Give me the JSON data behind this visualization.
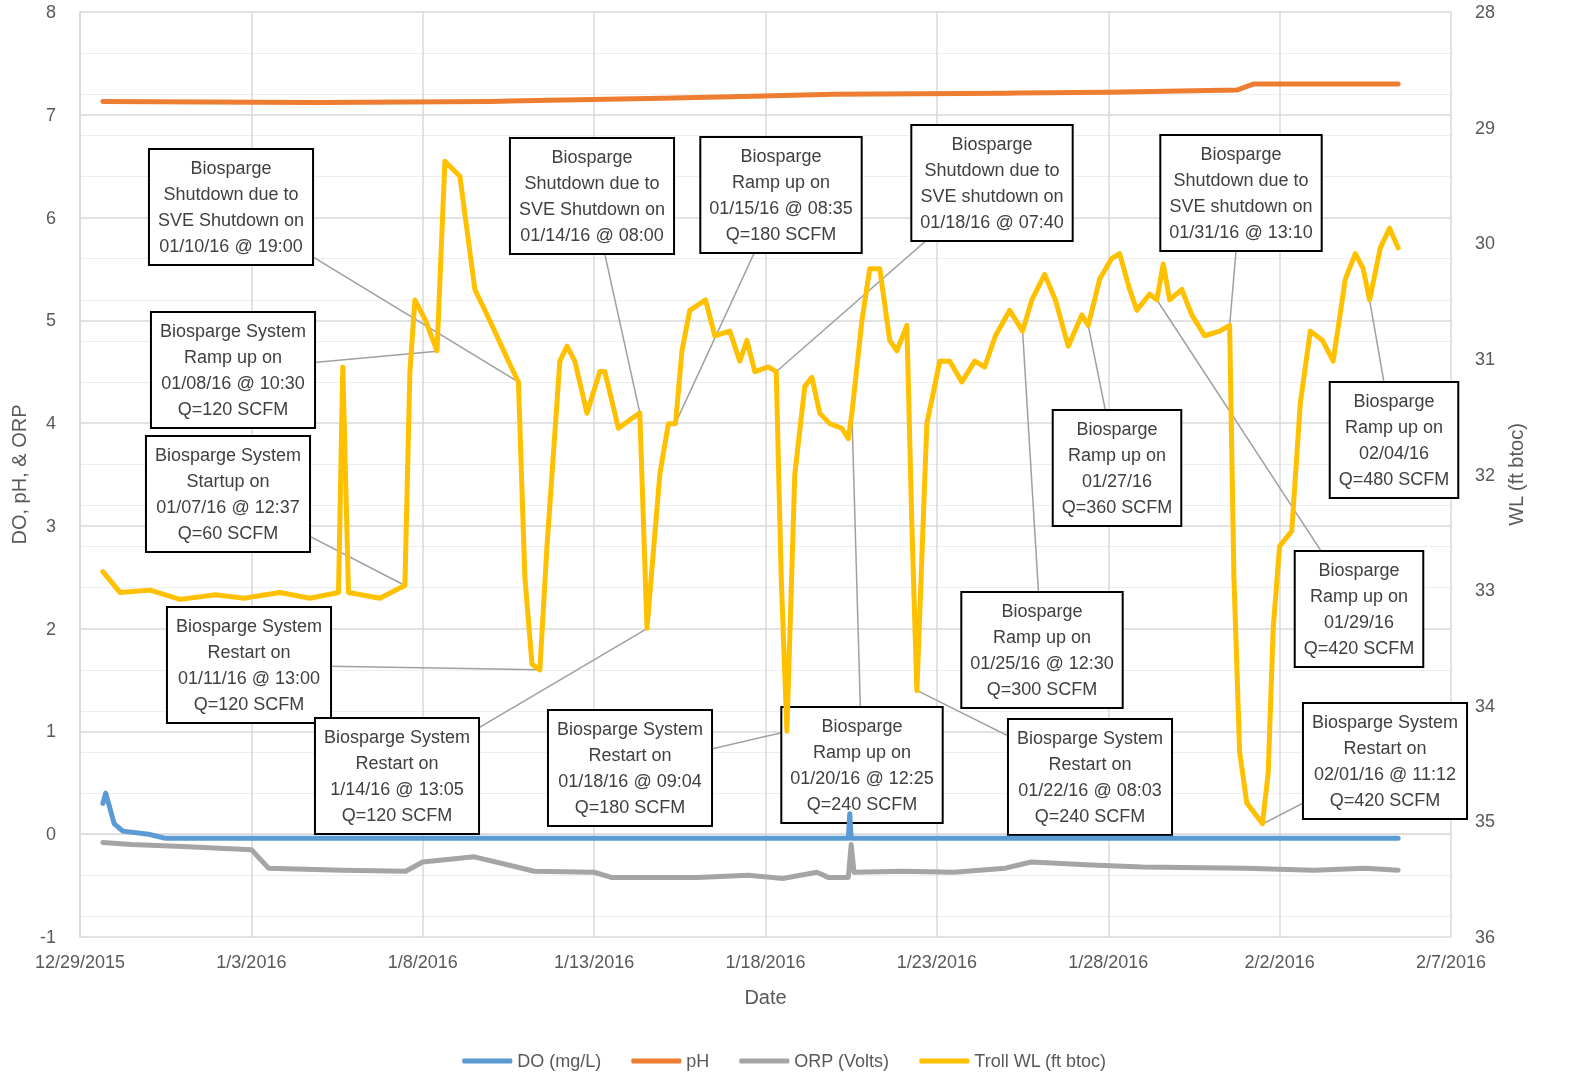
{
  "chart_data": {
    "type": "line",
    "xlabel": "Date",
    "ylabel": "DO, pH, & ORP",
    "y2label": "WL (ft btoc)",
    "xlim": [
      "2015-12-29",
      "2016-02-07"
    ],
    "xticks": [
      {
        "value": "2015-12-29",
        "label": "12/29/2015"
      },
      {
        "value": "2016-01-03",
        "label": "1/3/2016"
      },
      {
        "value": "2016-01-08",
        "label": "1/8/2016"
      },
      {
        "value": "2016-01-13",
        "label": "1/13/2016"
      },
      {
        "value": "2016-01-18",
        "label": "1/18/2016"
      },
      {
        "value": "2016-01-23",
        "label": "1/23/2016"
      },
      {
        "value": "2016-01-28",
        "label": "1/28/2016"
      },
      {
        "value": "2016-02-02",
        "label": "2/2/2016"
      },
      {
        "value": "2016-02-07",
        "label": "2/7/2016"
      }
    ],
    "ylim": [
      -1,
      8
    ],
    "yticks": [
      -1,
      0,
      1,
      2,
      3,
      4,
      5,
      6,
      7,
      8
    ],
    "y2lim": [
      36,
      28
    ],
    "y2ticks": [
      28,
      29,
      30,
      31,
      32,
      33,
      34,
      35,
      36
    ],
    "grid": true,
    "legend": "bottom",
    "marker": "none",
    "series": [
      {
        "name": "DO (mg/L)",
        "color": "#5b9bd5",
        "x": [
          "2015-12-29T16:00",
          "2015-12-29T18:00",
          "2015-12-30T00:00",
          "2015-12-30T06:00",
          "2015-12-31T00:00",
          "2015-12-31T12:00",
          "2016-01-20T10:00",
          "2016-01-20T11:00",
          "2016-01-20T12:00",
          "2016-02-05T11:00"
        ],
        "values": [
          0.3,
          0.4,
          0.1,
          0.03,
          0.0,
          -0.04,
          -0.04,
          0.2,
          -0.04,
          -0.04
        ]
      },
      {
        "name": "pH",
        "color": "#ed7d31",
        "x": [
          "2015-12-29T16:00",
          "2016-01-05T00:00",
          "2016-01-10T00:00",
          "2016-01-15T00:00",
          "2016-01-20T00:00",
          "2016-01-25T00:00",
          "2016-01-28T00:00",
          "2016-01-31T18:00",
          "2016-02-01T06:00",
          "2016-02-05T11:00"
        ],
        "values": [
          7.13,
          7.12,
          7.13,
          7.16,
          7.2,
          7.21,
          7.22,
          7.24,
          7.3,
          7.3
        ]
      },
      {
        "name": "ORP (Volts)",
        "color": "#a5a5a5",
        "x": [
          "2015-12-29T16:00",
          "2015-12-30T12:00",
          "2016-01-01T00:00",
          "2016-01-03T00:00",
          "2016-01-03T12:00",
          "2016-01-05T16:00",
          "2016-01-07T12:00",
          "2016-01-08T00:00",
          "2016-01-09T12:00",
          "2016-01-10T12:00",
          "2016-01-11T06:00",
          "2016-01-13T00:00",
          "2016-01-13T12:00",
          "2016-01-16T00:00",
          "2016-01-17T12:00",
          "2016-01-18T12:00",
          "2016-01-19T12:00",
          "2016-01-19T20:00",
          "2016-01-20T10:00",
          "2016-01-20T12:00",
          "2016-01-20T14:00",
          "2016-01-22T00:00",
          "2016-01-23T12:00",
          "2016-01-25T00:00",
          "2016-01-25T18:00",
          "2016-01-27T12:00",
          "2016-01-29T00:00",
          "2016-02-01T00:00",
          "2016-02-03T00:00",
          "2016-02-04T12:00",
          "2016-02-05T11:00"
        ],
        "values": [
          -0.08,
          -0.1,
          -0.12,
          -0.15,
          -0.33,
          -0.35,
          -0.36,
          -0.27,
          -0.22,
          -0.3,
          -0.36,
          -0.37,
          -0.42,
          -0.42,
          -0.4,
          -0.43,
          -0.37,
          -0.42,
          -0.42,
          -0.1,
          -0.37,
          -0.36,
          -0.37,
          -0.33,
          -0.27,
          -0.3,
          -0.32,
          -0.33,
          -0.35,
          -0.33,
          -0.35
        ]
      },
      {
        "name": "Troll WL (ft btoc)",
        "color": "#ffc000",
        "axis": "y2",
        "x": [
          "2015-12-29T16:00",
          "2015-12-30T04:00",
          "2015-12-31T01:00",
          "2015-12-31T22:00",
          "2016-01-01T23:00",
          "2016-01-02T19:00",
          "2016-01-03T20:00",
          "2016-01-04T17:00",
          "2016-01-05T13:00",
          "2016-01-05T16:00",
          "2016-01-05T20:00",
          "2016-01-06T18:00",
          "2016-01-07T11:30",
          "2016-01-07T15:00",
          "2016-01-07T18:30",
          "2016-01-08T02:00",
          "2016-01-08T10:00",
          "2016-01-08T15:30",
          "2016-01-09T02:00",
          "2016-01-09T12:30",
          "2016-01-09T23:00",
          "2016-01-10T12:00",
          "2016-01-10T19:00",
          "2016-01-10T23:30",
          "2016-01-11T04:30",
          "2016-01-11T10:00",
          "2016-01-11T15:00",
          "2016-01-12T00:00",
          "2016-01-12T05:00",
          "2016-01-12T10:30",
          "2016-01-12T19:00",
          "2016-01-13T04:00",
          "2016-01-13T07:30",
          "2016-01-13T17:00",
          "2016-01-14T03:00",
          "2016-01-14T08:00",
          "2016-01-14T13:00",
          "2016-01-14T22:00",
          "2016-01-15T04:00",
          "2016-01-15T09:00",
          "2016-01-15T13:30",
          "2016-01-15T19:00",
          "2016-01-16T06:00",
          "2016-01-16T12:30",
          "2016-01-16T23:00",
          "2016-01-17T06:00",
          "2016-01-17T11:00",
          "2016-01-17T16:30",
          "2016-01-18T02:00",
          "2016-01-18T07:30",
          "2016-01-18T11:00",
          "2016-01-18T15:00",
          "2016-01-18T20:30",
          "2016-01-19T03:30",
          "2016-01-19T08:30",
          "2016-01-19T14:00",
          "2016-01-19T21:00",
          "2016-01-20T05:30",
          "2016-01-20T10:00",
          "2016-01-20T12:30",
          "2016-01-20T19:30",
          "2016-01-21T01:00",
          "2016-01-21T08:00",
          "2016-01-21T15:00",
          "2016-01-21T20:00",
          "2016-01-22T03:00",
          "2016-01-22T06:30",
          "2016-01-22T10:00",
          "2016-01-22T17:00",
          "2016-01-23T02:00",
          "2016-01-23T09:00",
          "2016-01-23T17:30",
          "2016-01-24T02:30",
          "2016-01-24T09:30",
          "2016-01-24T17:00",
          "2016-01-25T03:00",
          "2016-01-25T12:00",
          "2016-01-25T18:30",
          "2016-01-26T03:30",
          "2016-01-26T11:00",
          "2016-01-26T20:00",
          "2016-01-27T05:30",
          "2016-01-27T10:00",
          "2016-01-27T18:00",
          "2016-01-28T02:30",
          "2016-01-28T08:00",
          "2016-01-28T15:00",
          "2016-01-28T20:00",
          "2016-01-29T05:00",
          "2016-01-29T10:00",
          "2016-01-29T14:30",
          "2016-01-29T19:00",
          "2016-01-30T03:30",
          "2016-01-30T10:30",
          "2016-01-30T19:30",
          "2016-01-31T06:00",
          "2016-01-31T13:00",
          "2016-01-31T16:00",
          "2016-01-31T20:00",
          "2016-02-01T01:00",
          "2016-02-01T12:00",
          "2016-02-01T16:00",
          "2016-02-01T19:30",
          "2016-02-02T00:00",
          "2016-02-02T08:30",
          "2016-02-02T14:30",
          "2016-02-02T21:30",
          "2016-02-03T06:00",
          "2016-02-03T13:30",
          "2016-02-03T22:00",
          "2016-02-04T05:00",
          "2016-02-04T10:30",
          "2016-02-04T15:00",
          "2016-02-04T22:30",
          "2016-02-05T05:00",
          "2016-02-05T11:00"
        ],
        "values": [
          32.84,
          33.02,
          33.0,
          33.08,
          33.04,
          33.07,
          33.02,
          33.07,
          33.02,
          31.07,
          33.02,
          33.07,
          32.96,
          31.11,
          30.49,
          30.67,
          30.93,
          29.29,
          29.42,
          30.4,
          30.67,
          31.02,
          31.2,
          32.89,
          33.64,
          33.69,
          32.62,
          31.02,
          30.89,
          31.02,
          31.47,
          31.11,
          31.11,
          31.6,
          31.51,
          31.47,
          33.33,
          32.0,
          31.56,
          31.56,
          30.93,
          30.58,
          30.49,
          30.8,
          30.76,
          31.02,
          30.84,
          31.11,
          31.07,
          31.11,
          32.89,
          34.22,
          32.0,
          31.24,
          31.16,
          31.47,
          31.56,
          31.6,
          31.69,
          31.47,
          30.67,
          30.22,
          30.22,
          30.84,
          30.93,
          30.71,
          32.44,
          33.87,
          31.56,
          31.02,
          31.02,
          31.2,
          31.02,
          31.07,
          30.8,
          30.58,
          30.76,
          30.49,
          30.27,
          30.49,
          30.89,
          30.62,
          30.71,
          30.31,
          30.13,
          30.09,
          30.4,
          30.58,
          30.44,
          30.49,
          30.18,
          30.49,
          30.4,
          30.62,
          30.8,
          30.76,
          30.71,
          32.89,
          34.4,
          34.84,
          35.02,
          34.58,
          33.33,
          32.62,
          32.49,
          31.38,
          30.76,
          30.84,
          31.02,
          30.31,
          30.09,
          30.22,
          30.49,
          30.04,
          29.87,
          30.04
        ]
      }
    ],
    "annotations": [
      {
        "text": "Biosparge\nShutdown due to\nSVE Shutdown on\n01/10/16 @ 19:00",
        "x": "2016-01-10T19:00",
        "y": 4.4
      },
      {
        "text": "Biosparge System\nRamp up on\n01/08/16 @ 10:30\nQ=120 SCFM",
        "x": "2016-01-08T10:00",
        "y": 4.7
      },
      {
        "text": "Biosparge System\nStartup on\n01/07/16 @ 12:37\nQ=60 SCFM",
        "x": "2016-01-07T11:30",
        "y": 2.42
      },
      {
        "text": "Biosparge System\nRestart on\n01/11/16 @ 13:00\nQ=120 SCFM",
        "x": "2016-01-11T10:00",
        "y": 1.6
      },
      {
        "text": "Biosparge\nShutdown due to\nSVE Shutdown on\n01/14/16 @ 08:00",
        "x": "2016-01-14T08:00",
        "y": 4.1
      },
      {
        "text": "Biosparge System\nRestart on\n1/14/16 @ 13:05\nQ=120 SCFM",
        "x": "2016-01-14T13:00",
        "y": 2.0
      },
      {
        "text": "Biosparge\nRamp up on\n01/15/16 @ 08:35\nQ=180 SCFM",
        "x": "2016-01-15T09:00",
        "y": 4.0
      },
      {
        "text": "Biosparge System\nRestart on\n01/18/16 @ 09:04\nQ=180 SCFM",
        "x": "2016-01-18T15:00",
        "y": 1.0
      },
      {
        "text": "Biosparge\nShutdown due to\nSVE shutdown on\n01/18/16 @ 07:40",
        "x": "2016-01-18T07:30",
        "y": 4.5
      },
      {
        "text": "Biosparge\nRamp up on\n01/20/16 @ 12:25\nQ=240 SCFM",
        "x": "2016-01-20T12:30",
        "y": 4.1
      },
      {
        "text": "Biosparge System\nRestart on\n01/22/16 @ 08:03\nQ=240 SCFM",
        "x": "2016-01-22T10:00",
        "y": 1.4
      },
      {
        "text": "Biosparge\nRamp up on\n01/25/16 @ 12:30\nQ=300 SCFM",
        "x": "2016-01-25T12:00",
        "y": 4.9
      },
      {
        "text": "Biosparge\nRamp up on\n01/27/16\nQ=360 SCFM",
        "x": "2016-01-27T10:00",
        "y": 4.95
      },
      {
        "text": "Biosparge\nShutdown due to\nSVE shutdown on\n01/31/16 @ 13:10",
        "x": "2016-01-31T13:00",
        "y": 4.95
      },
      {
        "text": "Biosparge\nRamp up on\n01/29/16\nQ=420 SCFM",
        "x": "2016-01-29T10:00",
        "y": 5.2
      },
      {
        "text": "Biosparge\nRamp up on\n02/04/16\nQ=480 SCFM",
        "x": "2016-02-04T15:00",
        "y": 5.2
      },
      {
        "text": "Biosparge System\nRestart on\n02/01/16 @ 11:12\nQ=420 SCFM",
        "x": "2016-02-01T12:00",
        "y": 0.1
      }
    ]
  }
}
